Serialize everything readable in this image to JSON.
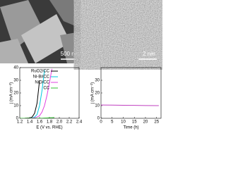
{
  "images": [
    {
      "scale_label": "500 nm"
    },
    {
      "scale_label": "2 nm"
    }
  ],
  "chart_data": [
    {
      "type": "line",
      "x_label": "E (V vs. RHE)",
      "y_label": "j (mA cm⁻²)",
      "x": [
        1.2,
        1.3,
        1.4,
        1.45,
        1.5,
        1.55,
        1.6,
        1.65,
        1.7,
        1.75,
        1.8,
        1.85,
        1.9
      ],
      "series": [
        {
          "name": "RuO2/CC",
          "color": "#000000",
          "values": [
            0,
            0.1,
            0.3,
            1,
            4,
            12,
            30,
            null,
            null,
            null,
            null,
            null,
            null
          ]
        },
        {
          "name": "Ni-Bi/CC",
          "color": "#00c8e0",
          "values": [
            0,
            0,
            0.1,
            0.3,
            1,
            3,
            10,
            22,
            38,
            null,
            null,
            null,
            null
          ]
        },
        {
          "name": "NiO/CC",
          "color": "#e040e0",
          "values": [
            0,
            0,
            0.1,
            0.2,
            0.4,
            1,
            2,
            5,
            10,
            18,
            28,
            39,
            null
          ]
        },
        {
          "name": "CC",
          "color": "#30c030",
          "values": [
            0,
            0,
            0,
            0,
            0,
            0,
            0.1,
            0.1,
            0.2,
            0.3,
            0.4,
            0.5,
            0.6
          ]
        }
      ],
      "xlim": [
        1.2,
        2.4
      ],
      "xticks": [
        1.2,
        1.4,
        1.6,
        1.8,
        {
          "value": 2,
          "label": "2.0"
        },
        2.2,
        2.4
      ],
      "ylim": [
        0,
        40
      ],
      "yticks": [
        0,
        10,
        20,
        30,
        40
      ]
    },
    {
      "type": "line",
      "x_label": "Time (h)",
      "y_label": "j (mA cm⁻²)",
      "x": [
        0,
        5,
        10,
        15,
        20,
        25,
        26
      ],
      "series": [
        {
          "color": "#c040c0",
          "values": [
            10.5,
            10.4,
            10.3,
            10.2,
            10.1,
            10.0,
            10.0
          ]
        }
      ],
      "xlim": [
        0,
        27
      ],
      "xticks": [
        0,
        5,
        10,
        15,
        20,
        25
      ],
      "ylim": [
        0,
        40
      ],
      "yticks": [
        0,
        10,
        20,
        30
      ]
    }
  ]
}
